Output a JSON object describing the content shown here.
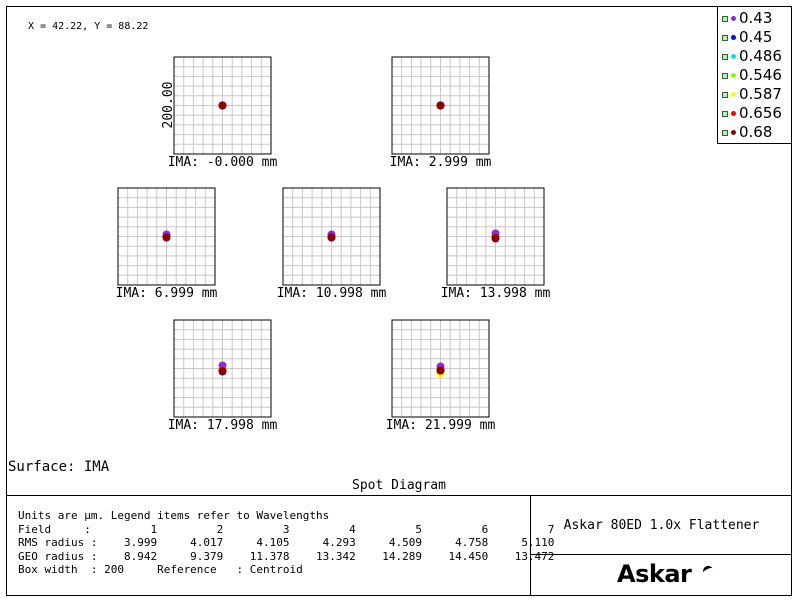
{
  "cursor_readout": "X = 42.22, Y = 88.22",
  "legend": [
    {
      "label": "0.43",
      "color": "#8a2be2"
    },
    {
      "label": "0.45",
      "color": "#0000ff"
    },
    {
      "label": "0.486",
      "color": "#00e5e5"
    },
    {
      "label": "0.546",
      "color": "#7fff00"
    },
    {
      "label": "0.587",
      "color": "#ffff00"
    },
    {
      "label": "0.656",
      "color": "#ff0000"
    },
    {
      "label": "0.68",
      "color": "#8b0000"
    }
  ],
  "chart_data": {
    "type": "scatter",
    "title": "Spot Diagram",
    "box_width_um": 200,
    "axis_label": "200.00",
    "grid": true,
    "legend_placement": "top-right",
    "fields": [
      {
        "label": "IMA: -0.000 mm",
        "field": 1,
        "spot_offsets": [
          {
            "wl": "0.43",
            "dx": 0,
            "dy": 0
          },
          {
            "wl": "0.656",
            "dx": 0,
            "dy": 0
          },
          {
            "wl": "0.68",
            "dx": 0,
            "dy": 0
          }
        ]
      },
      {
        "label": "IMA: 2.999 mm",
        "field": 2,
        "spot_offsets": [
          {
            "wl": "0.43",
            "dx": 0,
            "dy": 0
          },
          {
            "wl": "0.656",
            "dx": 0,
            "dy": 0
          },
          {
            "wl": "0.68",
            "dx": 0,
            "dy": 0
          }
        ]
      },
      {
        "label": "IMA: 6.999 mm",
        "field": 3,
        "spot_offsets": [
          {
            "wl": "0.43",
            "dx": 0,
            "dy": -2
          },
          {
            "wl": "0.656",
            "dx": 0,
            "dy": 1
          },
          {
            "wl": "0.68",
            "dx": 0,
            "dy": 1
          }
        ]
      },
      {
        "label": "IMA: 10.998 mm",
        "field": 4,
        "spot_offsets": [
          {
            "wl": "0.43",
            "dx": 0,
            "dy": -2
          },
          {
            "wl": "0.656",
            "dx": 0,
            "dy": 1
          },
          {
            "wl": "0.68",
            "dx": 0,
            "dy": 1
          }
        ]
      },
      {
        "label": "IMA: 13.998 mm",
        "field": 5,
        "spot_offsets": [
          {
            "wl": "0.43",
            "dx": 0,
            "dy": -3
          },
          {
            "wl": "0.656",
            "dx": 0,
            "dy": 1
          },
          {
            "wl": "0.68",
            "dx": 0,
            "dy": 2
          }
        ]
      },
      {
        "label": "IMA: 17.998 mm",
        "field": 6,
        "spot_offsets": [
          {
            "wl": "0.43",
            "dx": 0,
            "dy": -3
          },
          {
            "wl": "0.587",
            "dx": 0,
            "dy": 2
          },
          {
            "wl": "0.656",
            "dx": 0,
            "dy": 2
          },
          {
            "wl": "0.68",
            "dx": 0,
            "dy": 3
          }
        ]
      },
      {
        "label": "IMA: 21.999 mm",
        "field": 7,
        "spot_offsets": [
          {
            "wl": "0.43",
            "dx": 0,
            "dy": -2
          },
          {
            "wl": "0.587",
            "dx": 0,
            "dy": 5
          },
          {
            "wl": "0.656",
            "dx": 0,
            "dy": 2
          },
          {
            "wl": "0.68",
            "dx": 0,
            "dy": 2
          }
        ]
      }
    ]
  },
  "surface_label": "Surface: IMA",
  "plot_title": "Spot Diagram",
  "info": {
    "units_line": "Units are µm. Legend items refer to Wavelengths",
    "rows": [
      "Field     :         1         2         3         4         5         6         7",
      "RMS radius :    3.999     4.017     4.105     4.293     4.509     4.758     5.110",
      "GEO radius :    8.942     9.379    11.378    13.342    14.289    14.450    13.472",
      "Box width  : 200     Reference   : Centroid"
    ]
  },
  "system_name": "Askar 80ED 1.0x Flattener",
  "logo_text": "Askar"
}
